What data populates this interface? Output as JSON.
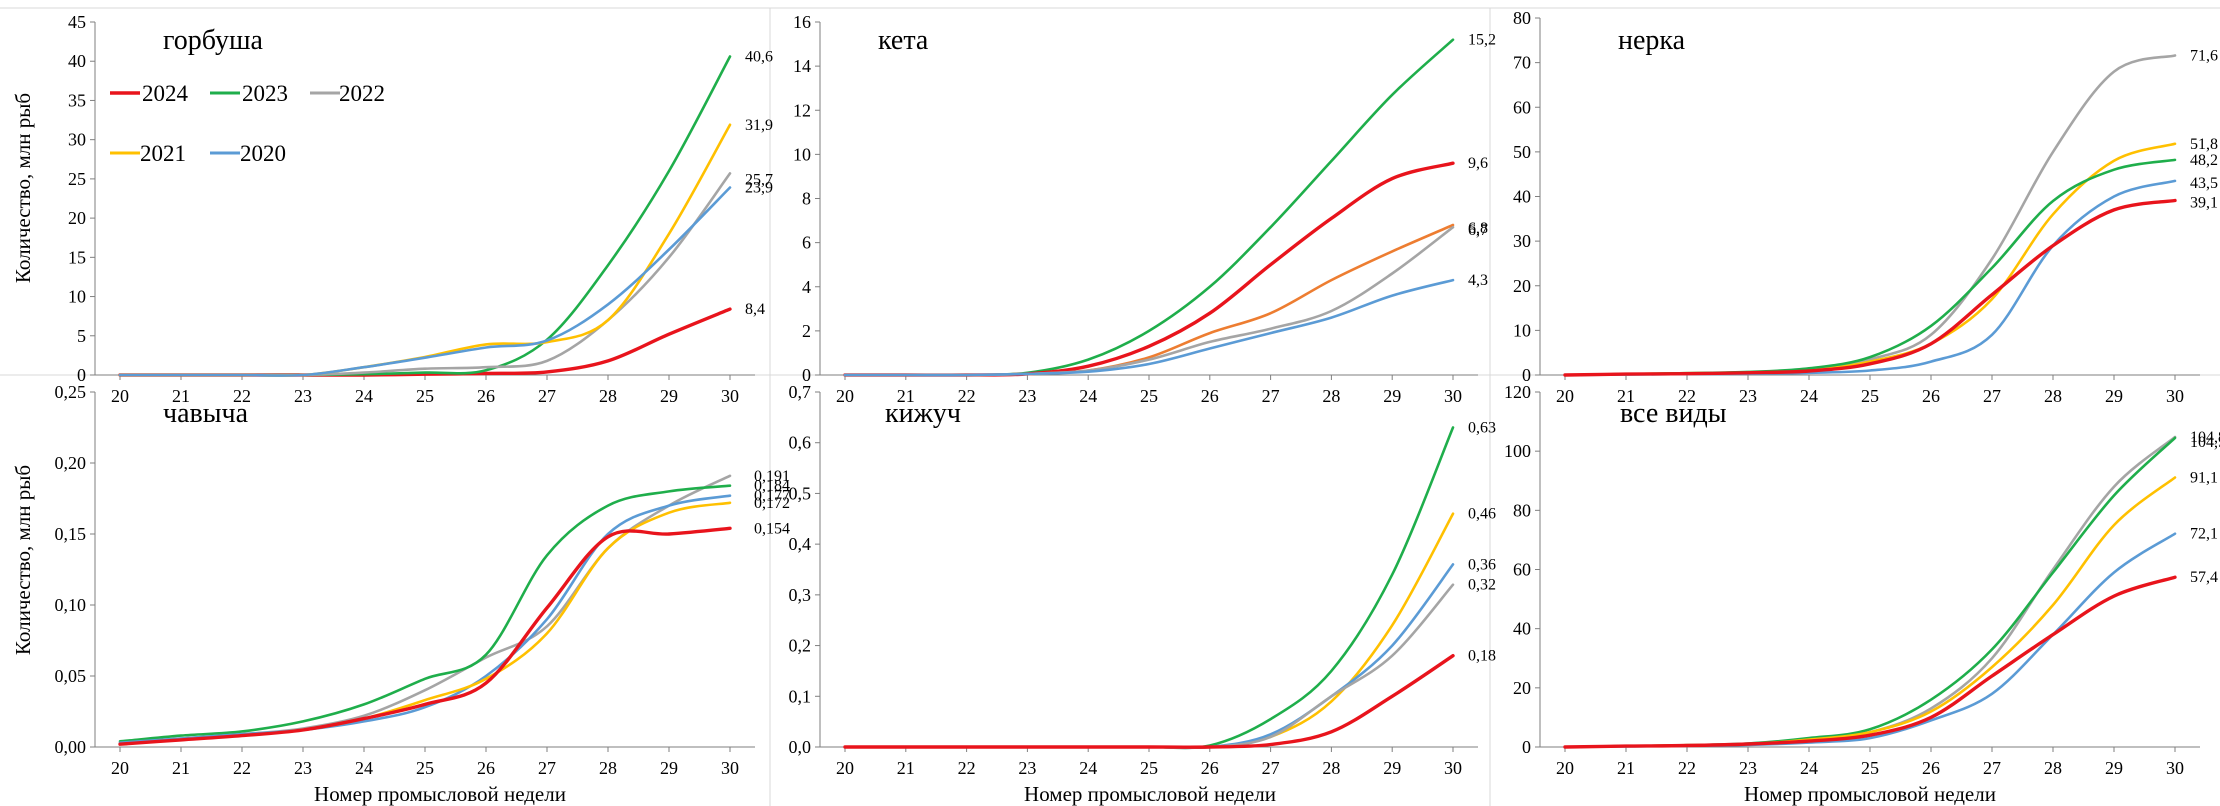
{
  "figure": {
    "ylabel": "Количество, млн рыб",
    "xlabel": "Номер промысловой недели",
    "colors": {
      "2024": "#e8141c",
      "2023": "#1fae4b",
      "2022": "#a5a5a5",
      "2021": "#ffc000",
      "2020": "#5b9bd5",
      "orange": "#ed7d31"
    },
    "legend": [
      {
        "label": "2024",
        "color": "#e8141c"
      },
      {
        "label": "2023",
        "color": "#1fae4b"
      },
      {
        "label": "2022",
        "color": "#a5a5a5"
      },
      {
        "label": "2021",
        "color": "#ffc000"
      },
      {
        "label": "2020",
        "color": "#5b9bd5"
      }
    ]
  },
  "chart_data": [
    {
      "type": "line",
      "title": "горбуша",
      "x": [
        20,
        21,
        22,
        23,
        24,
        25,
        26,
        27,
        28,
        29,
        30
      ],
      "ylim": [
        0,
        45
      ],
      "yticks": [
        "0",
        "5",
        "10",
        "15",
        "20",
        "25",
        "30",
        "35",
        "40",
        "45"
      ],
      "series": [
        {
          "name": "2024",
          "color": "#e8141c",
          "values": [
            0,
            0,
            0,
            0,
            0,
            0.1,
            0.2,
            0.4,
            1.8,
            5.2,
            8.4
          ],
          "end_label": "8,4"
        },
        {
          "name": "2023",
          "color": "#1fae4b",
          "values": [
            0,
            0,
            0,
            0,
            0.1,
            0.3,
            0.6,
            4.5,
            14,
            26,
            40.6
          ],
          "end_label": "40,6"
        },
        {
          "name": "2022",
          "color": "#a5a5a5",
          "values": [
            0,
            0,
            0,
            0,
            0.3,
            0.8,
            1.0,
            1.8,
            7,
            15,
            25.7
          ],
          "end_label": "25,7"
        },
        {
          "name": "2021",
          "color": "#ffc000",
          "values": [
            0,
            0,
            0,
            0,
            1.0,
            2.3,
            3.9,
            4.2,
            7,
            18,
            31.9
          ],
          "end_label": "31,9"
        },
        {
          "name": "2020",
          "color": "#5b9bd5",
          "values": [
            0,
            0,
            0,
            0,
            1.0,
            2.2,
            3.5,
            4.4,
            9,
            16,
            23.9
          ],
          "end_label": "23,9"
        }
      ]
    },
    {
      "type": "line",
      "title": "кета",
      "x": [
        20,
        21,
        22,
        23,
        24,
        25,
        26,
        27,
        28,
        29,
        30
      ],
      "ylim": [
        0,
        16
      ],
      "yticks": [
        "0",
        "2",
        "4",
        "6",
        "8",
        "10",
        "12",
        "14",
        "16"
      ],
      "series": [
        {
          "name": "2023",
          "color": "#1fae4b",
          "values": [
            0,
            0,
            0,
            0.1,
            0.7,
            2.0,
            4.0,
            6.7,
            9.7,
            12.7,
            15.2
          ],
          "end_label": "15,2"
        },
        {
          "name": "2024",
          "color": "#e8141c",
          "values": [
            0,
            0,
            0,
            0.05,
            0.4,
            1.3,
            2.8,
            5.0,
            7.1,
            8.9,
            9.6
          ],
          "end_label": "9,6"
        },
        {
          "color": "#ed7d31",
          "values": [
            0,
            0,
            0,
            0.05,
            0.2,
            0.8,
            1.9,
            2.8,
            4.3,
            5.6,
            6.8
          ],
          "end_label": "6,8"
        },
        {
          "color": "#a5a5a5",
          "values": [
            0,
            0,
            0,
            0.05,
            0.2,
            0.7,
            1.5,
            2.1,
            2.9,
            4.6,
            6.7
          ],
          "end_label": "6,7"
        },
        {
          "color": "#5b9bd5",
          "values": [
            0,
            0,
            0,
            0.05,
            0.15,
            0.5,
            1.2,
            1.9,
            2.6,
            3.6,
            4.3
          ],
          "end_label": "4,3"
        }
      ]
    },
    {
      "type": "line",
      "title": "нерка",
      "x": [
        20,
        21,
        22,
        23,
        24,
        25,
        26,
        27,
        28,
        29,
        30
      ],
      "ylim": [
        0,
        80
      ],
      "yticks": [
        "0",
        "10",
        "20",
        "30",
        "40",
        "50",
        "60",
        "70",
        "80"
      ],
      "series": [
        {
          "name": "2022",
          "color": "#a5a5a5",
          "values": [
            0,
            0.2,
            0.4,
            0.6,
            1.2,
            3.5,
            9,
            26,
            50,
            68,
            71.6
          ],
          "end_label": "71,6"
        },
        {
          "name": "2021",
          "color": "#ffc000",
          "values": [
            0,
            0.2,
            0.4,
            0.6,
            1.0,
            3.0,
            7,
            17,
            36,
            48,
            51.8
          ],
          "end_label": "51,8"
        },
        {
          "name": "2023",
          "color": "#1fae4b",
          "values": [
            0,
            0.2,
            0.4,
            0.7,
            1.5,
            4,
            11,
            24,
            39,
            46,
            48.2
          ],
          "end_label": "48,2"
        },
        {
          "name": "2020",
          "color": "#5b9bd5",
          "values": [
            0,
            0.1,
            0.2,
            0.3,
            0.5,
            1,
            3,
            9,
            29,
            40,
            43.5
          ],
          "end_label": "43,5"
        },
        {
          "name": "2024",
          "color": "#e8141c",
          "values": [
            0,
            0.2,
            0.3,
            0.5,
            0.9,
            2.5,
            7,
            18,
            29,
            37,
            39.1
          ],
          "end_label": "39,1"
        }
      ]
    },
    {
      "type": "line",
      "title": "чавыча",
      "x": [
        20,
        21,
        22,
        23,
        24,
        25,
        26,
        27,
        28,
        29,
        30
      ],
      "ylim": [
        0,
        0.25
      ],
      "yticks": [
        "0,00",
        "0,05",
        "0,10",
        "0,15",
        "0,20",
        "0,25"
      ],
      "series": [
        {
          "name": "2022",
          "color": "#a5a5a5",
          "values": [
            0.003,
            0.006,
            0.009,
            0.013,
            0.022,
            0.04,
            0.063,
            0.085,
            0.14,
            0.17,
            0.191
          ],
          "end_label": "0,191"
        },
        {
          "name": "2023",
          "color": "#1fae4b",
          "values": [
            0.004,
            0.008,
            0.011,
            0.018,
            0.03,
            0.048,
            0.065,
            0.135,
            0.17,
            0.18,
            0.184
          ],
          "end_label": "0,184"
        },
        {
          "name": "2020",
          "color": "#5b9bd5",
          "values": [
            0.003,
            0.006,
            0.009,
            0.012,
            0.018,
            0.028,
            0.05,
            0.09,
            0.15,
            0.17,
            0.177
          ],
          "end_label": "0,177"
        },
        {
          "name": "2021",
          "color": "#ffc000",
          "values": [
            0.002,
            0.005,
            0.008,
            0.012,
            0.02,
            0.033,
            0.048,
            0.08,
            0.14,
            0.165,
            0.172
          ],
          "end_label": "0,172"
        },
        {
          "name": "2024",
          "color": "#e8141c",
          "values": [
            0.002,
            0.005,
            0.008,
            0.012,
            0.02,
            0.03,
            0.045,
            0.098,
            0.148,
            0.15,
            0.154
          ],
          "end_label": "0,154"
        }
      ]
    },
    {
      "type": "line",
      "title": "кижуч",
      "x": [
        20,
        21,
        22,
        23,
        24,
        25,
        26,
        27,
        28,
        29,
        30
      ],
      "ylim": [
        0,
        0.7
      ],
      "yticks": [
        "0,0",
        "0,1",
        "0,2",
        "0,3",
        "0,4",
        "0,5",
        "0,6",
        "0,7"
      ],
      "series": [
        {
          "name": "2023",
          "color": "#1fae4b",
          "values": [
            0,
            0,
            0,
            0,
            0,
            0,
            0.003,
            0.055,
            0.15,
            0.34,
            0.63
          ],
          "end_label": "0,63"
        },
        {
          "name": "2021",
          "color": "#ffc000",
          "values": [
            0,
            0,
            0,
            0,
            0,
            0,
            0,
            0.02,
            0.09,
            0.24,
            0.46
          ],
          "end_label": "0,46"
        },
        {
          "name": "2020",
          "color": "#5b9bd5",
          "values": [
            0,
            0,
            0,
            0,
            0,
            0,
            0,
            0.025,
            0.1,
            0.2,
            0.36
          ],
          "end_label": "0,36"
        },
        {
          "name": "2022",
          "color": "#a5a5a5",
          "values": [
            0,
            0,
            0,
            0,
            0,
            0,
            0,
            0.02,
            0.1,
            0.18,
            0.32
          ],
          "end_label": "0,32"
        },
        {
          "name": "2024",
          "color": "#e8141c",
          "values": [
            0,
            0,
            0,
            0,
            0,
            0,
            0,
            0.005,
            0.03,
            0.1,
            0.18
          ],
          "end_label": "0,18"
        }
      ]
    },
    {
      "type": "line",
      "title": "все виды",
      "x": [
        20,
        21,
        22,
        23,
        24,
        25,
        26,
        27,
        28,
        29,
        30
      ],
      "ylim": [
        0,
        120
      ],
      "yticks": [
        "0",
        "20",
        "40",
        "60",
        "80",
        "100",
        "120"
      ],
      "series": [
        {
          "name": "2022",
          "color": "#a5a5a5",
          "values": [
            0,
            0.3,
            0.6,
            1.2,
            2.5,
            5,
            13,
            30,
            60,
            88,
            104.8
          ],
          "end_label": "104,8"
        },
        {
          "name": "2023",
          "color": "#1fae4b",
          "values": [
            0,
            0.3,
            0.6,
            1.2,
            3,
            6,
            16,
            33,
            59,
            85,
            104.5
          ],
          "end_label": "104,5"
        },
        {
          "name": "2021",
          "color": "#ffc000",
          "values": [
            0,
            0.3,
            0.6,
            1.0,
            2.5,
            5,
            12,
            27,
            48,
            75,
            91.1
          ],
          "end_label": "91,1"
        },
        {
          "name": "2020",
          "color": "#5b9bd5",
          "values": [
            0,
            0.2,
            0.4,
            0.7,
            1.5,
            3,
            9,
            18,
            38,
            59,
            72.1
          ],
          "end_label": "72,1"
        },
        {
          "name": "2024",
          "color": "#e8141c",
          "values": [
            0,
            0.3,
            0.5,
            1.0,
            2,
            4,
            10,
            24,
            38,
            51,
            57.4
          ],
          "end_label": "57,4"
        }
      ]
    }
  ]
}
